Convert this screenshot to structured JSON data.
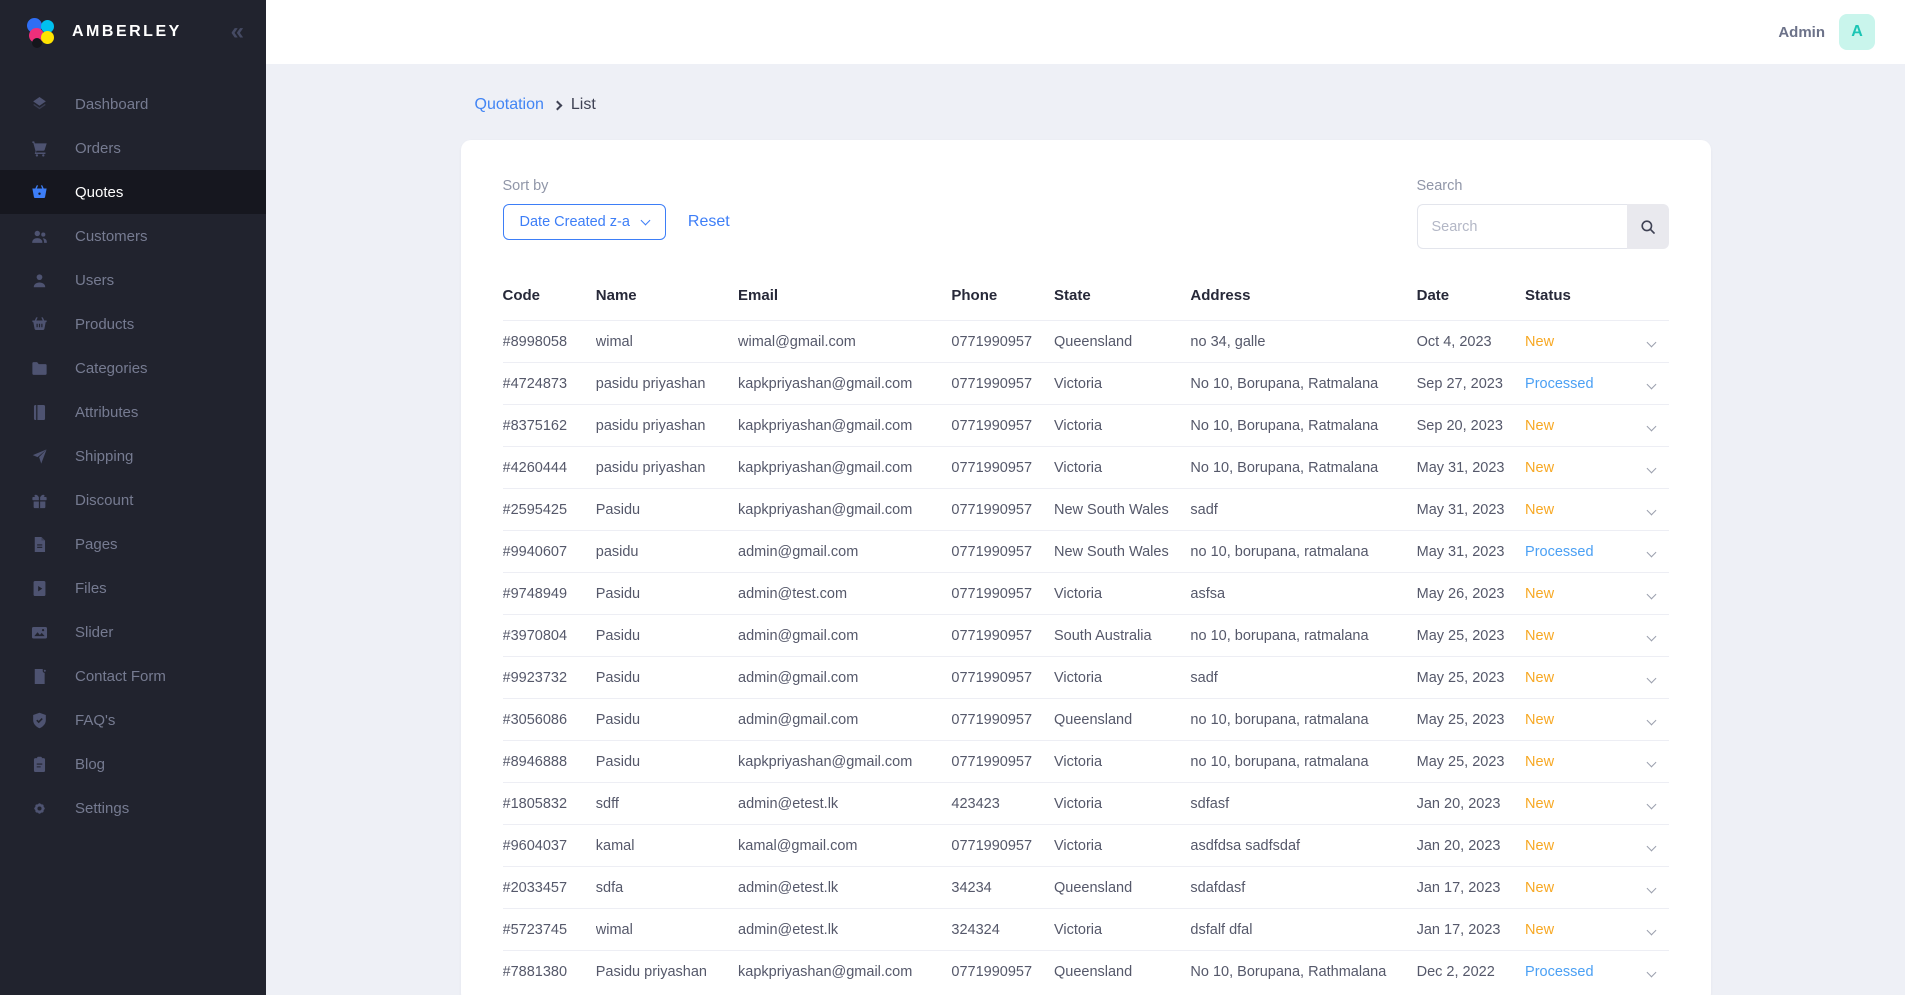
{
  "brand": {
    "name": "AMBERLEY"
  },
  "header": {
    "user_label": "Admin",
    "avatar_letter": "A"
  },
  "sidebar": {
    "items": [
      {
        "id": "dashboard",
        "label": "Dashboard",
        "icon": "dashboard",
        "active": false
      },
      {
        "id": "orders",
        "label": "Orders",
        "icon": "cart",
        "active": false
      },
      {
        "id": "quotes",
        "label": "Quotes",
        "icon": "basket",
        "active": true
      },
      {
        "id": "customers",
        "label": "Customers",
        "icon": "customers",
        "active": false
      },
      {
        "id": "users",
        "label": "Users",
        "icon": "user",
        "active": false
      },
      {
        "id": "products",
        "label": "Products",
        "icon": "shop-basket",
        "active": false
      },
      {
        "id": "categories",
        "label": "Categories",
        "icon": "folder",
        "active": false
      },
      {
        "id": "attributes",
        "label": "Attributes",
        "icon": "notebook",
        "active": false
      },
      {
        "id": "shipping",
        "label": "Shipping",
        "icon": "send",
        "active": false
      },
      {
        "id": "discount",
        "label": "Discount",
        "icon": "gift",
        "active": false
      },
      {
        "id": "pages",
        "label": "Pages",
        "icon": "document",
        "active": false
      },
      {
        "id": "files",
        "label": "Files",
        "icon": "file-play",
        "active": false
      },
      {
        "id": "slider",
        "label": "Slider",
        "icon": "image",
        "active": false
      },
      {
        "id": "contact-form",
        "label": "Contact Form",
        "icon": "file-contact",
        "active": false
      },
      {
        "id": "faqs",
        "label": "FAQ's",
        "icon": "shield-check",
        "active": false
      },
      {
        "id": "blog",
        "label": "Blog",
        "icon": "clipboard",
        "active": false
      },
      {
        "id": "settings",
        "label": "Settings",
        "icon": "gear",
        "active": false
      }
    ]
  },
  "breadcrumb": {
    "parent": "Quotation",
    "current": "List"
  },
  "filters": {
    "sort_label": "Sort by",
    "sort_value": "Date Created z-a",
    "reset_label": "Reset",
    "search_label": "Search",
    "search_placeholder": "Search",
    "search_value": ""
  },
  "table": {
    "columns": [
      "Code",
      "Name",
      "Email",
      "Phone",
      "State",
      "Address",
      "Date",
      "Status"
    ],
    "rows": [
      {
        "code": "#8998058",
        "name": "wimal",
        "email": "wimal@gmail.com",
        "phone": "0771990957",
        "state": "Queensland",
        "address": "no 34, galle",
        "date": "Oct 4, 2023",
        "status": "New",
        "status_type": "new"
      },
      {
        "code": "#4724873",
        "name": "pasidu priyashan",
        "email": "kapkpriyashan@gmail.com",
        "phone": "0771990957",
        "state": "Victoria",
        "address": "No 10, Borupana, Ratmalana",
        "date": "Sep 27, 2023",
        "status": "Processed",
        "status_type": "processed"
      },
      {
        "code": "#8375162",
        "name": "pasidu priyashan",
        "email": "kapkpriyashan@gmail.com",
        "phone": "0771990957",
        "state": "Victoria",
        "address": "No 10, Borupana, Ratmalana",
        "date": "Sep 20, 2023",
        "status": "New",
        "status_type": "new"
      },
      {
        "code": "#4260444",
        "name": "pasidu priyashan",
        "email": "kapkpriyashan@gmail.com",
        "phone": "0771990957",
        "state": "Victoria",
        "address": "No 10, Borupana, Ratmalana",
        "date": "May 31, 2023",
        "status": "New",
        "status_type": "new"
      },
      {
        "code": "#2595425",
        "name": "Pasidu",
        "email": "kapkpriyashan@gmail.com",
        "phone": "0771990957",
        "state": "New South Wales",
        "address": "sadf",
        "date": "May 31, 2023",
        "status": "New",
        "status_type": "new"
      },
      {
        "code": "#9940607",
        "name": "pasidu",
        "email": "admin@gmail.com",
        "phone": "0771990957",
        "state": "New South Wales",
        "address": "no 10, borupana, ratmalana",
        "date": "May 31, 2023",
        "status": "Processed",
        "status_type": "processed"
      },
      {
        "code": "#9748949",
        "name": "Pasidu",
        "email": "admin@test.com",
        "phone": "0771990957",
        "state": "Victoria",
        "address": "asfsa",
        "date": "May 26, 2023",
        "status": "New",
        "status_type": "new"
      },
      {
        "code": "#3970804",
        "name": "Pasidu",
        "email": "admin@gmail.com",
        "phone": "0771990957",
        "state": "South Australia",
        "address": "no 10, borupana, ratmalana",
        "date": "May 25, 2023",
        "status": "New",
        "status_type": "new"
      },
      {
        "code": "#9923732",
        "name": "Pasidu",
        "email": "admin@gmail.com",
        "phone": "0771990957",
        "state": "Victoria",
        "address": "sadf",
        "date": "May 25, 2023",
        "status": "New",
        "status_type": "new"
      },
      {
        "code": "#3056086",
        "name": "Pasidu",
        "email": "admin@gmail.com",
        "phone": "0771990957",
        "state": "Queensland",
        "address": "no 10, borupana, ratmalana",
        "date": "May 25, 2023",
        "status": "New",
        "status_type": "new"
      },
      {
        "code": "#8946888",
        "name": "Pasidu",
        "email": "kapkpriyashan@gmail.com",
        "phone": "0771990957",
        "state": "Victoria",
        "address": "no 10, borupana, ratmalana",
        "date": "May 25, 2023",
        "status": "New",
        "status_type": "new"
      },
      {
        "code": "#1805832",
        "name": "sdff",
        "email": "admin@etest.lk",
        "phone": "423423",
        "state": "Victoria",
        "address": "sdfasf",
        "date": "Jan 20, 2023",
        "status": "New",
        "status_type": "new"
      },
      {
        "code": "#9604037",
        "name": "kamal",
        "email": "kamal@gmail.com",
        "phone": "0771990957",
        "state": "Victoria",
        "address": "asdfdsa sadfsdaf",
        "date": "Jan 20, 2023",
        "status": "New",
        "status_type": "new"
      },
      {
        "code": "#2033457",
        "name": "sdfa",
        "email": "admin@etest.lk",
        "phone": "34234",
        "state": "Queensland",
        "address": "sdafdasf",
        "date": "Jan 17, 2023",
        "status": "New",
        "status_type": "new"
      },
      {
        "code": "#5723745",
        "name": "wimal",
        "email": "admin@etest.lk",
        "phone": "324324",
        "state": "Victoria",
        "address": "dsfalf dfal",
        "date": "Jan 17, 2023",
        "status": "New",
        "status_type": "new"
      },
      {
        "code": "#7881380",
        "name": "Pasidu priyashan",
        "email": "kapkpriyashan@gmail.com",
        "phone": "0771990957",
        "state": "Queensland",
        "address": "No 10, Borupana, Rathmalana",
        "date": "Dec 2, 2022",
        "status": "Processed",
        "status_type": "processed"
      }
    ]
  },
  "colors": {
    "accent": "#4285f4",
    "status_new": "#f7a823",
    "status_processed": "#4ba0f4",
    "sidebar_bg": "#21232e",
    "avatar_bg": "#c9f5ec",
    "avatar_text": "#1bc5b4"
  }
}
